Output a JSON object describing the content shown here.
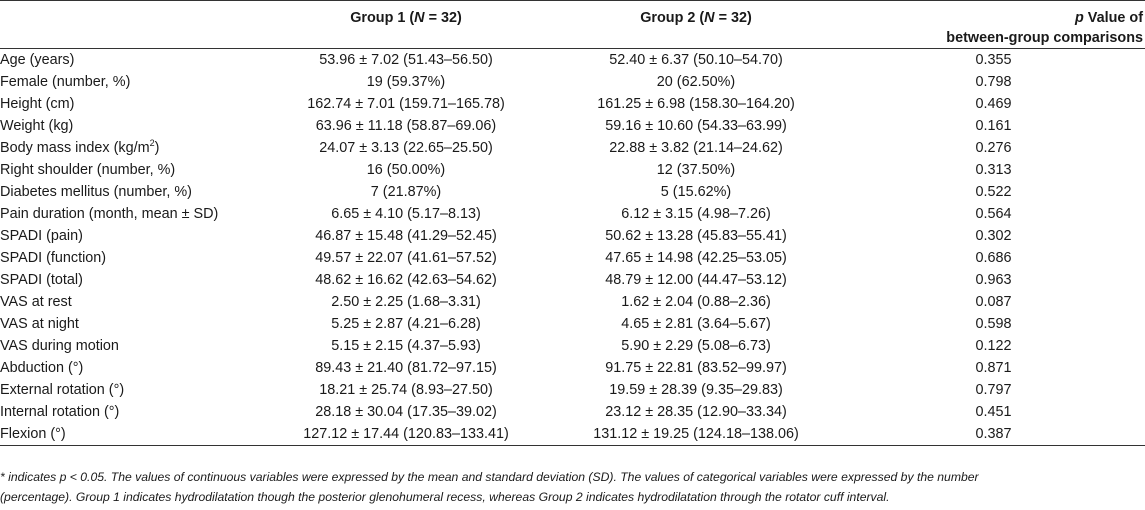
{
  "table": {
    "headers": {
      "label": "",
      "group1_prefix": "Group 1 (",
      "group1_n": "N",
      "group1_suffix": " = 32)",
      "group2_prefix": "Group 2 (",
      "group2_n": "N",
      "group2_suffix": " = 32)",
      "p_italic": "p",
      "p_line1_rest": " Value of",
      "p_line2": "between-group comparisons"
    },
    "rows": [
      {
        "label": "Age (years)",
        "g1": "53.96 ± 7.02 (51.43–56.50)",
        "g2": "52.40 ± 6.37 (50.10–54.70)",
        "p": "0.355"
      },
      {
        "label": "Female (number, %)",
        "g1": "19 (59.37%)",
        "g2": "20 (62.50%)",
        "p": "0.798"
      },
      {
        "label": "Height (cm)",
        "g1": "162.74 ± 7.01 (159.71–165.78)",
        "g2": "161.25 ± 6.98 (158.30–164.20)",
        "p": "0.469"
      },
      {
        "label": "Weight (kg)",
        "g1": "63.96 ± 11.18 (58.87–69.06)",
        "g2": "59.16 ± 10.60 (54.33–63.99)",
        "p": "0.161"
      },
      {
        "label": "Body mass index (kg/m",
        "label_sup": "2",
        "label_tail": ")",
        "g1": "24.07 ± 3.13 (22.65–25.50)",
        "g2": "22.88 ± 3.82 (21.14–24.62)",
        "p": "0.276"
      },
      {
        "label": "Right shoulder (number, %)",
        "g1": "16 (50.00%)",
        "g2": "12 (37.50%)",
        "p": "0.313"
      },
      {
        "label": "Diabetes mellitus (number, %)",
        "g1": "7 (21.87%)",
        "g2": "5 (15.62%)",
        "p": "0.522"
      },
      {
        "label": "Pain duration (month, mean ± SD)",
        "g1": "6.65 ± 4.10 (5.17–8.13)",
        "g2": "6.12 ± 3.15 (4.98–7.26)",
        "p": "0.564"
      },
      {
        "label": "SPADI (pain)",
        "g1": "46.87 ± 15.48 (41.29–52.45)",
        "g2": "50.62 ± 13.28 (45.83–55.41)",
        "p": "0.302"
      },
      {
        "label": "SPADI (function)",
        "g1": "49.57 ± 22.07 (41.61–57.52)",
        "g2": "47.65 ± 14.98 (42.25–53.05)",
        "p": "0.686"
      },
      {
        "label": "SPADI (total)",
        "g1": "48.62 ± 16.62 (42.63–54.62)",
        "g2": "48.79 ± 12.00 (44.47–53.12)",
        "p": "0.963"
      },
      {
        "label": "VAS at rest",
        "g1": "2.50 ± 2.25 (1.68–3.31)",
        "g2": "1.62 ± 2.04 (0.88–2.36)",
        "p": "0.087"
      },
      {
        "label": "VAS at night",
        "g1": "5.25 ± 2.87 (4.21–6.28)",
        "g2": "4.65 ± 2.81 (3.64–5.67)",
        "p": "0.598"
      },
      {
        "label": "VAS during motion",
        "g1": "5.15 ± 2.15 (4.37–5.93)",
        "g2": "5.90 ± 2.29 (5.08–6.73)",
        "p": "0.122"
      },
      {
        "label": "Abduction (°)",
        "g1": "89.43 ± 21.40 (81.72–97.15)",
        "g2": "91.75 ± 22.81 (83.52–99.97)",
        "p": "0.871"
      },
      {
        "label": "External rotation (°)",
        "g1": "18.21 ± 25.74 (8.93–27.50)",
        "g2": "19.59 ± 28.39 (9.35–29.83)",
        "p": "0.797"
      },
      {
        "label": "Internal rotation (°)",
        "g1": "28.18 ± 30.04 (17.35–39.02)",
        "g2": "23.12 ± 28.35 (12.90–33.34)",
        "p": "0.451"
      },
      {
        "label": "Flexion (°)",
        "g1": "127.12 ± 17.44 (120.83–133.41)",
        "g2": "131.12 ± 19.25 (124.18–138.06)",
        "p": "0.387"
      }
    ]
  },
  "footnote": {
    "line1": "* indicates p < 0.05. The values of continuous variables were expressed by the mean and standard deviation (SD). The values of categorical variables were expressed by the number",
    "line2": "(percentage). Group 1 indicates hydrodilatation though the posterior glenohumeral recess, whereas Group 2 indicates hydrodilatation through the rotator cuff interval."
  }
}
